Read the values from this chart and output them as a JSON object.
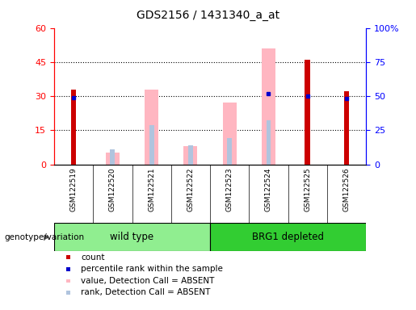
{
  "title": "GDS2156 / 1431340_a_at",
  "samples": [
    "GSM122519",
    "GSM122520",
    "GSM122521",
    "GSM122522",
    "GSM122523",
    "GSM122524",
    "GSM122525",
    "GSM122526"
  ],
  "count_values": [
    33,
    null,
    null,
    null,
    null,
    null,
    46,
    32
  ],
  "percentile_rank": [
    49,
    null,
    null,
    null,
    null,
    52,
    50,
    48
  ],
  "absent_value": [
    null,
    5,
    33,
    8,
    27,
    51,
    null,
    null
  ],
  "absent_rank": [
    null,
    11,
    29,
    14,
    19,
    32,
    null,
    null
  ],
  "left_ylim": [
    0,
    60
  ],
  "right_ylim": [
    0,
    100
  ],
  "left_yticks": [
    0,
    15,
    30,
    45,
    60
  ],
  "right_yticks": [
    0,
    25,
    50,
    75,
    100
  ],
  "right_yticklabels": [
    "0",
    "25",
    "50",
    "75",
    "100%"
  ],
  "count_color": "#CC0000",
  "percentile_color": "#0000CC",
  "absent_value_color": "#FFB6C1",
  "absent_rank_color": "#B0C4DE",
  "bg_color": "#D3D3D3",
  "plot_bg": "#FFFFFF",
  "wt_color": "#90EE90",
  "brg_color": "#32CD32",
  "legend_items": [
    [
      "count",
      "#CC0000"
    ],
    [
      "percentile rank within the sample",
      "#0000CC"
    ],
    [
      "value, Detection Call = ABSENT",
      "#FFB6C1"
    ],
    [
      "rank, Detection Call = ABSENT",
      "#B0C4DE"
    ]
  ]
}
